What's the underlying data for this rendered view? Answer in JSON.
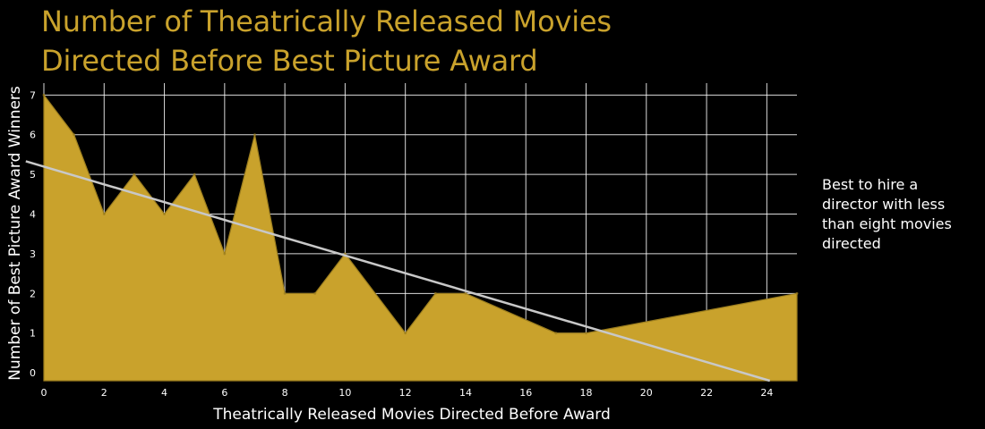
{
  "colors": {
    "background": "#000000",
    "title": "#c9a22c",
    "area_fill": "#c9a22c",
    "area_stroke": "#9c7e1f",
    "grid": "#ffffff",
    "trend": "#c8c8c8",
    "text": "#ffffff"
  },
  "title": {
    "line1": "Number of Theatrically Released Movies",
    "line2": "Directed Before Best Picture Award"
  },
  "annotation": "Best to hire a director with less than eight movies directed",
  "chart_data": {
    "type": "area",
    "title": "Number of Theatrically Released Movies Directed Before Best Picture Award",
    "xlabel": "Theatrically Released Movies Directed Before Award",
    "ylabel": "Number of Best Picture Award Winners",
    "xlim": [
      0,
      25
    ],
    "ylim": [
      -0.2,
      7.3
    ],
    "xticks": [
      0,
      2,
      4,
      6,
      8,
      10,
      12,
      14,
      16,
      18,
      20,
      22,
      24
    ],
    "yticks": [
      0,
      1,
      2,
      3,
      4,
      5,
      6,
      7
    ],
    "grid": true,
    "x": [
      0,
      1,
      2,
      3,
      4,
      5,
      6,
      7,
      8,
      9,
      10,
      12,
      13,
      14,
      17,
      18,
      25
    ],
    "y": [
      7,
      6,
      4,
      5,
      4,
      5,
      3,
      6,
      2,
      2,
      3,
      1,
      2,
      2,
      1,
      1,
      2
    ],
    "trendline": {
      "x": [
        -0.6,
        24.1
      ],
      "y": [
        5.33,
        -0.2
      ]
    }
  }
}
